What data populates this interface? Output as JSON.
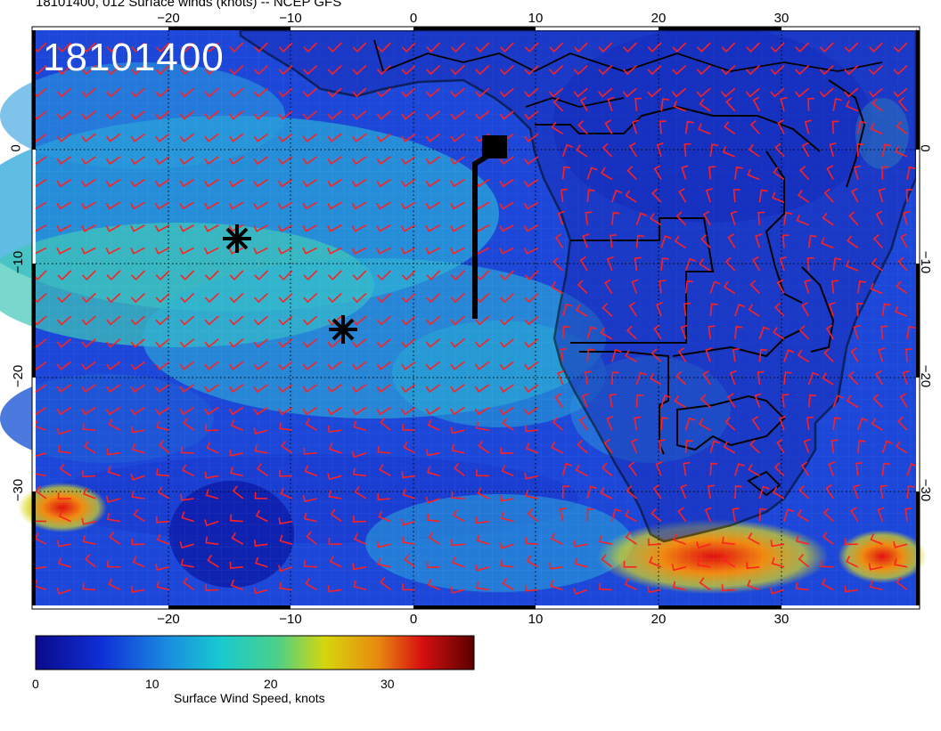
{
  "header": {
    "title": "18101400, 012 Surface winds (knots) -- NCEP GFS",
    "stamp": "18101400"
  },
  "axes": {
    "lon_labels": [
      "−20",
      "−10",
      "0",
      "10",
      "20",
      "30"
    ],
    "lat_labels": [
      "0",
      "−10",
      "−20",
      "−30"
    ]
  },
  "colorbar": {
    "title": "Surface Wind Speed, knots",
    "ticks": [
      "0",
      "10",
      "20",
      "30"
    ],
    "range": [
      0,
      36
    ]
  },
  "markers": [
    {
      "name": "star-marker-1",
      "lon": -14.6,
      "lat": -8.2
    },
    {
      "name": "star-marker-2",
      "lon": -5.8,
      "lat": -15.9
    },
    {
      "name": "square-marker",
      "lon": 6.6,
      "lat": 0.2
    }
  ],
  "colors": {
    "ocean_base": "#1a3fd6",
    "wind_barb": "#ff2020",
    "coastline": "#000000"
  }
}
